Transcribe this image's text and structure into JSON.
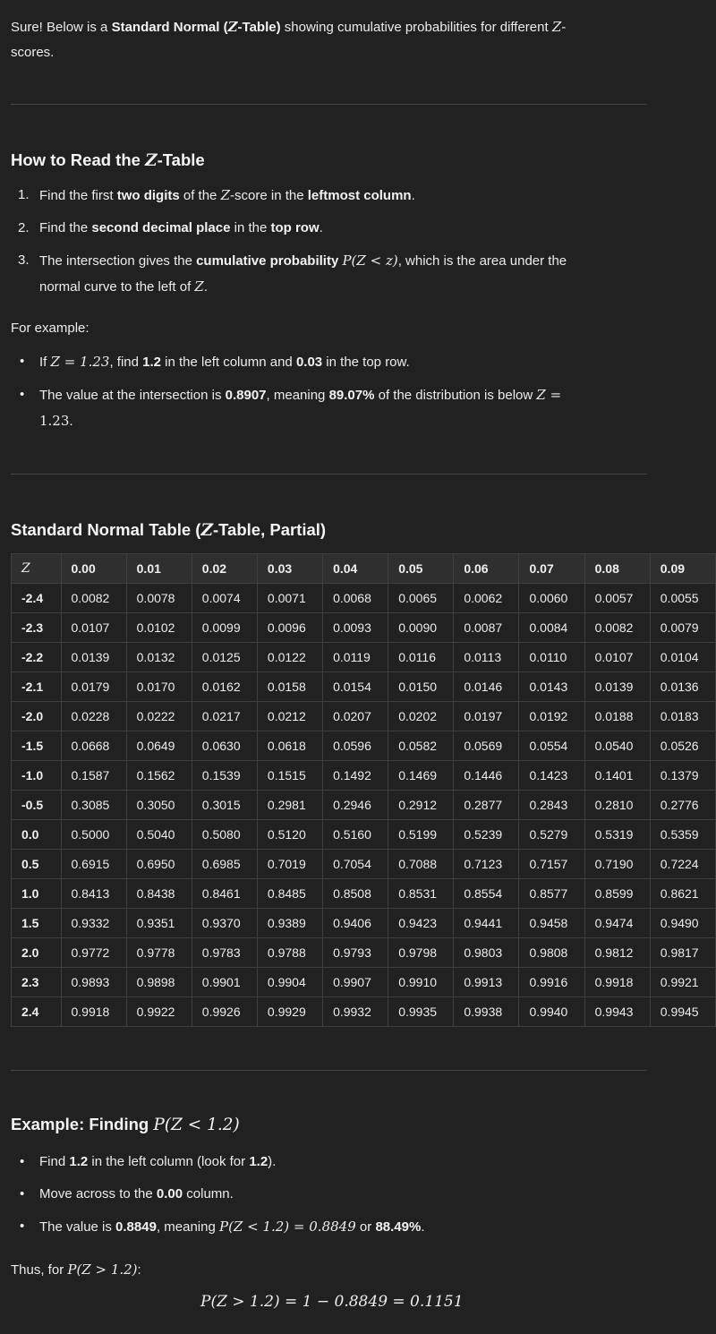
{
  "intro": {
    "p1": "Sure! Below is a ",
    "bold": "Standard Normal (",
    "z": "Z",
    "bold2": "-Table)",
    "p2": " showing cumulative probabilities for different ",
    "z2": "Z",
    "p3": "-",
    "p4": "scores."
  },
  "how": {
    "heading_pre": "How to Read the ",
    "heading_z": "Z",
    "heading_post": "-Table",
    "steps": [
      {
        "num": "1.",
        "t1": "Find the first ",
        "b1": "two digits",
        "t2": " of the ",
        "z": "Z",
        "t3": "-score in the ",
        "b2": "leftmost column",
        "t4": "."
      },
      {
        "num": "2.",
        "t1": "Find the ",
        "b1": "second decimal place",
        "t2": " in the ",
        "b2": "top row",
        "t3": "."
      },
      {
        "num": "3.",
        "t1": "The intersection gives the ",
        "b1": "cumulative probability",
        "math": "P(Z < z)",
        "t2": ", which is the area under the",
        "t3": "normal curve to the left of ",
        "z": "Z",
        "t4": "."
      }
    ],
    "example_label": "For example:",
    "bullets": [
      {
        "t1": "If ",
        "math": "Z = 1.23",
        "t2": ", find ",
        "b1": "1.2",
        "t3": " in the left column and ",
        "b2": "0.03",
        "t4": " in the top row."
      },
      {
        "t1": "The value at the intersection is ",
        "b1": "0.8907",
        "t2": ", meaning ",
        "b2": "89.07%",
        "t3": " of the distribution is below ",
        "math": "Z =",
        "math2": "1.23",
        "t4": "."
      }
    ]
  },
  "table_section": {
    "heading_pre": "Standard Normal Table (",
    "heading_z": "Z",
    "heading_post": "-Table, Partial)",
    "header_z": "Z",
    "columns": [
      "0.00",
      "0.01",
      "0.02",
      "0.03",
      "0.04",
      "0.05",
      "0.06",
      "0.07",
      "0.08",
      "0.09"
    ],
    "rows": [
      {
        "z": "-2.4",
        "v": [
          "0.0082",
          "0.0078",
          "0.0074",
          "0.0071",
          "0.0068",
          "0.0065",
          "0.0062",
          "0.0060",
          "0.0057",
          "0.0055"
        ]
      },
      {
        "z": "-2.3",
        "v": [
          "0.0107",
          "0.0102",
          "0.0099",
          "0.0096",
          "0.0093",
          "0.0090",
          "0.0087",
          "0.0084",
          "0.0082",
          "0.0079"
        ]
      },
      {
        "z": "-2.2",
        "v": [
          "0.0139",
          "0.0132",
          "0.0125",
          "0.0122",
          "0.0119",
          "0.0116",
          "0.0113",
          "0.0110",
          "0.0107",
          "0.0104"
        ]
      },
      {
        "z": "-2.1",
        "v": [
          "0.0179",
          "0.0170",
          "0.0162",
          "0.0158",
          "0.0154",
          "0.0150",
          "0.0146",
          "0.0143",
          "0.0139",
          "0.0136"
        ]
      },
      {
        "z": "-2.0",
        "v": [
          "0.0228",
          "0.0222",
          "0.0217",
          "0.0212",
          "0.0207",
          "0.0202",
          "0.0197",
          "0.0192",
          "0.0188",
          "0.0183"
        ]
      },
      {
        "z": "-1.5",
        "v": [
          "0.0668",
          "0.0649",
          "0.0630",
          "0.0618",
          "0.0596",
          "0.0582",
          "0.0569",
          "0.0554",
          "0.0540",
          "0.0526"
        ]
      },
      {
        "z": "-1.0",
        "v": [
          "0.1587",
          "0.1562",
          "0.1539",
          "0.1515",
          "0.1492",
          "0.1469",
          "0.1446",
          "0.1423",
          "0.1401",
          "0.1379"
        ]
      },
      {
        "z": "-0.5",
        "v": [
          "0.3085",
          "0.3050",
          "0.3015",
          "0.2981",
          "0.2946",
          "0.2912",
          "0.2877",
          "0.2843",
          "0.2810",
          "0.2776"
        ]
      },
      {
        "z": "0.0",
        "v": [
          "0.5000",
          "0.5040",
          "0.5080",
          "0.5120",
          "0.5160",
          "0.5199",
          "0.5239",
          "0.5279",
          "0.5319",
          "0.5359"
        ]
      },
      {
        "z": "0.5",
        "v": [
          "0.6915",
          "0.6950",
          "0.6985",
          "0.7019",
          "0.7054",
          "0.7088",
          "0.7123",
          "0.7157",
          "0.7190",
          "0.7224"
        ]
      },
      {
        "z": "1.0",
        "v": [
          "0.8413",
          "0.8438",
          "0.8461",
          "0.8485",
          "0.8508",
          "0.8531",
          "0.8554",
          "0.8577",
          "0.8599",
          "0.8621"
        ]
      },
      {
        "z": "1.5",
        "v": [
          "0.9332",
          "0.9351",
          "0.9370",
          "0.9389",
          "0.9406",
          "0.9423",
          "0.9441",
          "0.9458",
          "0.9474",
          "0.9490"
        ]
      },
      {
        "z": "2.0",
        "v": [
          "0.9772",
          "0.9778",
          "0.9783",
          "0.9788",
          "0.9793",
          "0.9798",
          "0.9803",
          "0.9808",
          "0.9812",
          "0.9817"
        ]
      },
      {
        "z": "2.3",
        "v": [
          "0.9893",
          "0.9898",
          "0.9901",
          "0.9904",
          "0.9907",
          "0.9910",
          "0.9913",
          "0.9916",
          "0.9918",
          "0.9921"
        ]
      },
      {
        "z": "2.4",
        "v": [
          "0.9918",
          "0.9922",
          "0.9926",
          "0.9929",
          "0.9932",
          "0.9935",
          "0.9938",
          "0.9940",
          "0.9943",
          "0.9945"
        ]
      }
    ]
  },
  "example": {
    "heading_pre": "Example: Finding ",
    "heading_math": "P(Z < 1.2)",
    "bullets": [
      {
        "t1": "Find ",
        "b1": "1.2",
        "t2": " in the left column (look for ",
        "b2": "1.2",
        "t3": ")."
      },
      {
        "t1": "Move across to the ",
        "b1": "0.00",
        "t2": " column."
      },
      {
        "t1": "The value is ",
        "b1": "0.8849",
        "t2": ", meaning ",
        "math": "P(Z < 1.2) = 0.8849",
        "t3": " or ",
        "b2": "88.49%",
        "t4": "."
      }
    ],
    "thus_pre": "Thus, for ",
    "thus_math": "P(Z > 1.2)",
    "thus_post": ":",
    "equation": "P(Z > 1.2) = 1 − 0.8849 = 0.1151"
  }
}
